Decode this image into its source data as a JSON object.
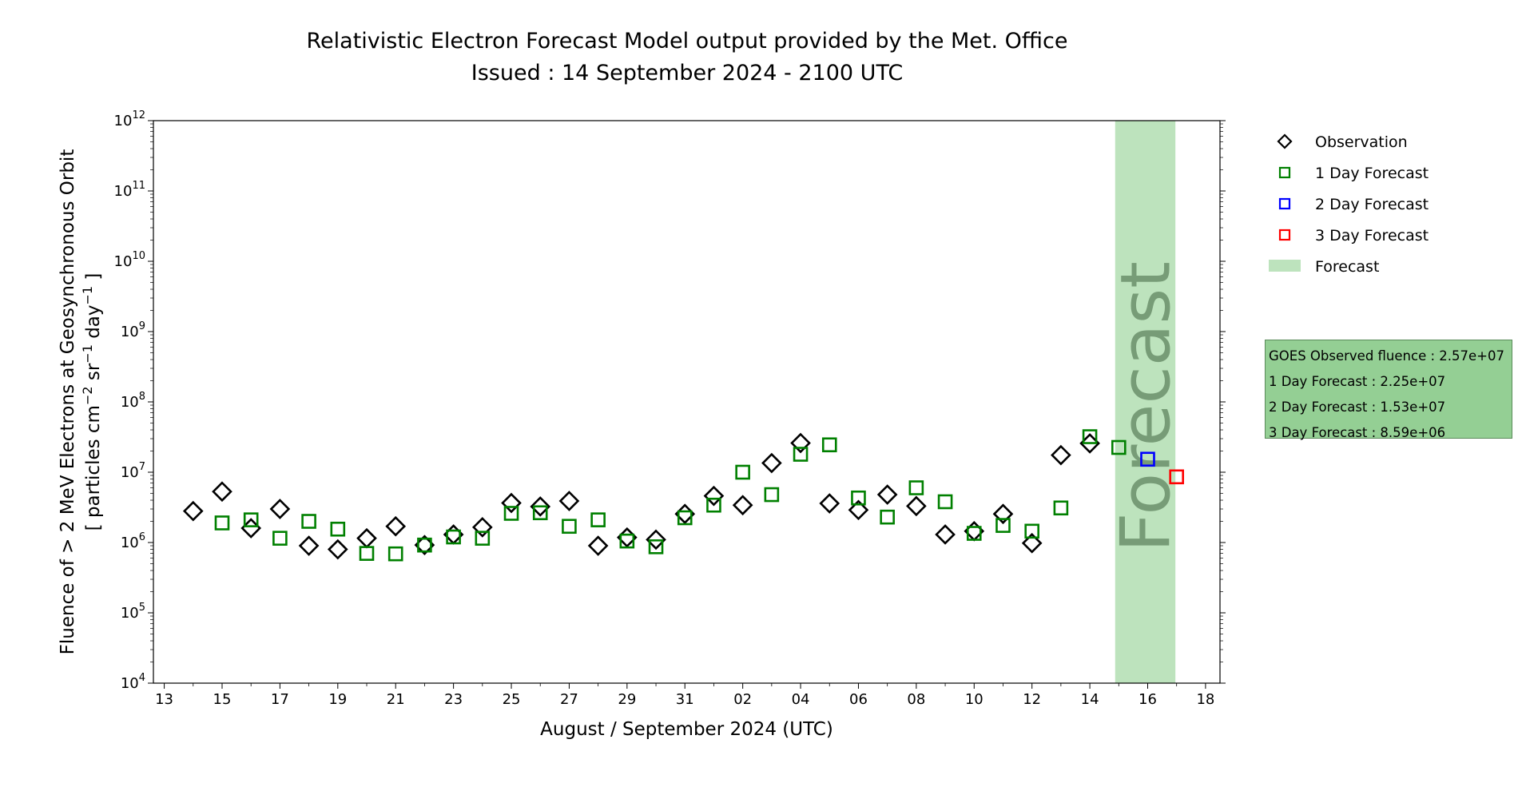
{
  "title_line1": "Relativistic Electron Forecast Model output provided by the Met. Office",
  "title_line2": "Issued : 14 September 2024 - 2100 UTC",
  "chart_data": {
    "type": "scatter",
    "title": "Relativistic Electron Forecast Model output provided by the Met. Office",
    "subtitle": "Issued : 14 September 2024 - 2100 UTC",
    "xlabel": "August / September 2024 (UTC)",
    "ylabel_line1": "Fluence of > 2 MeV Electrons at Geosynchronous Orbit",
    "ylabel_line2_prefix": "[ particles cm",
    "ylabel_line2_mid": " sr",
    "ylabel_line2_suffix": " day",
    "ylabel_line2_end": " ]",
    "ylabel_exp": "−1",
    "ylabel_exp_cm": "−2",
    "yscale": "log",
    "ylim": [
      10000,
      1000000000000
    ],
    "xlim": [
      "2024-08-12T15:00",
      "2024-09-18T12:00"
    ],
    "x_ticks": [
      {
        "date": "2024-08-13",
        "label": "13"
      },
      {
        "date": "2024-08-15",
        "label": "15"
      },
      {
        "date": "2024-08-17",
        "label": "17"
      },
      {
        "date": "2024-08-19",
        "label": "19"
      },
      {
        "date": "2024-08-21",
        "label": "21"
      },
      {
        "date": "2024-08-23",
        "label": "23"
      },
      {
        "date": "2024-08-25",
        "label": "25"
      },
      {
        "date": "2024-08-27",
        "label": "27"
      },
      {
        "date": "2024-08-29",
        "label": "29"
      },
      {
        "date": "2024-08-31",
        "label": "31"
      },
      {
        "date": "2024-09-02",
        "label": "02"
      },
      {
        "date": "2024-09-04",
        "label": "04"
      },
      {
        "date": "2024-09-06",
        "label": "06"
      },
      {
        "date": "2024-09-08",
        "label": "08"
      },
      {
        "date": "2024-09-10",
        "label": "10"
      },
      {
        "date": "2024-09-12",
        "label": "12"
      },
      {
        "date": "2024-09-14",
        "label": "14"
      },
      {
        "date": "2024-09-16",
        "label": "16"
      },
      {
        "date": "2024-09-18",
        "label": "18"
      }
    ],
    "y_ticks": [
      {
        "value": 10000,
        "base": "10",
        "exp": "4"
      },
      {
        "value": 100000,
        "base": "10",
        "exp": "5"
      },
      {
        "value": 1000000,
        "base": "10",
        "exp": "6"
      },
      {
        "value": 10000000,
        "base": "10",
        "exp": "7"
      },
      {
        "value": 100000000,
        "base": "10",
        "exp": "8"
      },
      {
        "value": 1000000000,
        "base": "10",
        "exp": "9"
      },
      {
        "value": 10000000000,
        "base": "10",
        "exp": "10"
      },
      {
        "value": 100000000000,
        "base": "10",
        "exp": "11"
      },
      {
        "value": 1000000000000,
        "base": "10",
        "exp": "12"
      }
    ],
    "forecast_band": {
      "start": "2024-09-14T21:00",
      "end": "2024-09-16T23:00",
      "label": "Forecast",
      "color": "#bde3bd"
    },
    "series": [
      {
        "name": "Observation",
        "marker": "diamond",
        "color": "#000000",
        "points": [
          {
            "x": "2024-08-14",
            "y": 2800000
          },
          {
            "x": "2024-08-15",
            "y": 5300000
          },
          {
            "x": "2024-08-16",
            "y": 1600000
          },
          {
            "x": "2024-08-17",
            "y": 3000000
          },
          {
            "x": "2024-08-18",
            "y": 900000
          },
          {
            "x": "2024-08-19",
            "y": 800000
          },
          {
            "x": "2024-08-20",
            "y": 1150000
          },
          {
            "x": "2024-08-21",
            "y": 1700000
          },
          {
            "x": "2024-08-22",
            "y": 920000
          },
          {
            "x": "2024-08-23",
            "y": 1300000
          },
          {
            "x": "2024-08-24",
            "y": 1650000
          },
          {
            "x": "2024-08-25",
            "y": 3650000
          },
          {
            "x": "2024-08-26",
            "y": 3250000
          },
          {
            "x": "2024-08-27",
            "y": 3900000
          },
          {
            "x": "2024-08-28",
            "y": 900000
          },
          {
            "x": "2024-08-29",
            "y": 1180000
          },
          {
            "x": "2024-08-30",
            "y": 1100000
          },
          {
            "x": "2024-08-31",
            "y": 2550000
          },
          {
            "x": "2024-09-01",
            "y": 4600000
          },
          {
            "x": "2024-09-02",
            "y": 3400000
          },
          {
            "x": "2024-09-03",
            "y": 13500000
          },
          {
            "x": "2024-09-04",
            "y": 26000000
          },
          {
            "x": "2024-09-05",
            "y": 3600000
          },
          {
            "x": "2024-09-06",
            "y": 2900000
          },
          {
            "x": "2024-09-07",
            "y": 4800000
          },
          {
            "x": "2024-09-08",
            "y": 3300000
          },
          {
            "x": "2024-09-09",
            "y": 1300000
          },
          {
            "x": "2024-09-10",
            "y": 1450000
          },
          {
            "x": "2024-09-11",
            "y": 2550000
          },
          {
            "x": "2024-09-12",
            "y": 980000
          },
          {
            "x": "2024-09-13",
            "y": 17500000
          },
          {
            "x": "2024-09-14",
            "y": 25700000
          }
        ]
      },
      {
        "name": "1 Day Forecast",
        "marker": "square",
        "color": "#008000",
        "points": [
          {
            "x": "2024-08-15",
            "y": 1900000
          },
          {
            "x": "2024-08-16",
            "y": 2100000
          },
          {
            "x": "2024-08-17",
            "y": 1150000
          },
          {
            "x": "2024-08-18",
            "y": 2000000
          },
          {
            "x": "2024-08-19",
            "y": 1550000
          },
          {
            "x": "2024-08-20",
            "y": 700000
          },
          {
            "x": "2024-08-21",
            "y": 690000
          },
          {
            "x": "2024-08-22",
            "y": 920000
          },
          {
            "x": "2024-08-23",
            "y": 1200000
          },
          {
            "x": "2024-08-24",
            "y": 1150000
          },
          {
            "x": "2024-08-25",
            "y": 2600000
          },
          {
            "x": "2024-08-26",
            "y": 2650000
          },
          {
            "x": "2024-08-27",
            "y": 1700000
          },
          {
            "x": "2024-08-28",
            "y": 2100000
          },
          {
            "x": "2024-08-29",
            "y": 1050000
          },
          {
            "x": "2024-08-30",
            "y": 870000
          },
          {
            "x": "2024-08-31",
            "y": 2250000
          },
          {
            "x": "2024-09-01",
            "y": 3400000
          },
          {
            "x": "2024-09-02",
            "y": 10000000
          },
          {
            "x": "2024-09-03",
            "y": 4800000
          },
          {
            "x": "2024-09-04",
            "y": 18000000
          },
          {
            "x": "2024-09-05",
            "y": 24500000
          },
          {
            "x": "2024-09-06",
            "y": 4300000
          },
          {
            "x": "2024-09-07",
            "y": 2300000
          },
          {
            "x": "2024-09-08",
            "y": 6000000
          },
          {
            "x": "2024-09-09",
            "y": 3800000
          },
          {
            "x": "2024-09-10",
            "y": 1350000
          },
          {
            "x": "2024-09-11",
            "y": 1750000
          },
          {
            "x": "2024-09-12",
            "y": 1450000
          },
          {
            "x": "2024-09-13",
            "y": 3100000
          },
          {
            "x": "2024-09-14",
            "y": 32000000
          },
          {
            "x": "2024-09-15",
            "y": 22500000
          }
        ]
      },
      {
        "name": "2 Day Forecast",
        "marker": "square",
        "color": "#0000ff",
        "points": [
          {
            "x": "2024-09-16",
            "y": 15300000
          }
        ]
      },
      {
        "name": "3 Day Forecast",
        "marker": "square",
        "color": "#ff0000",
        "points": [
          {
            "x": "2024-09-17",
            "y": 8590000
          }
        ]
      }
    ],
    "legend": {
      "placement": "upper right outside",
      "items": [
        {
          "label": "Observation",
          "marker": "diamond",
          "color": "#000000"
        },
        {
          "label": "1 Day Forecast",
          "marker": "square",
          "color": "#008000"
        },
        {
          "label": "2 Day Forecast",
          "marker": "square",
          "color": "#0000ff"
        },
        {
          "label": "3 Day Forecast",
          "marker": "square",
          "color": "#ff0000"
        },
        {
          "label": "Forecast",
          "marker": "patch",
          "color": "#bde3bd"
        }
      ]
    },
    "info_box": [
      "GOES Observed fluence : 2.57e+07",
      "1 Day Forecast : 2.25e+07",
      "2 Day Forecast : 1.53e+07",
      "3 Day Forecast : 8.59e+06"
    ],
    "info_box_color": "#94cf94",
    "grid": false
  }
}
